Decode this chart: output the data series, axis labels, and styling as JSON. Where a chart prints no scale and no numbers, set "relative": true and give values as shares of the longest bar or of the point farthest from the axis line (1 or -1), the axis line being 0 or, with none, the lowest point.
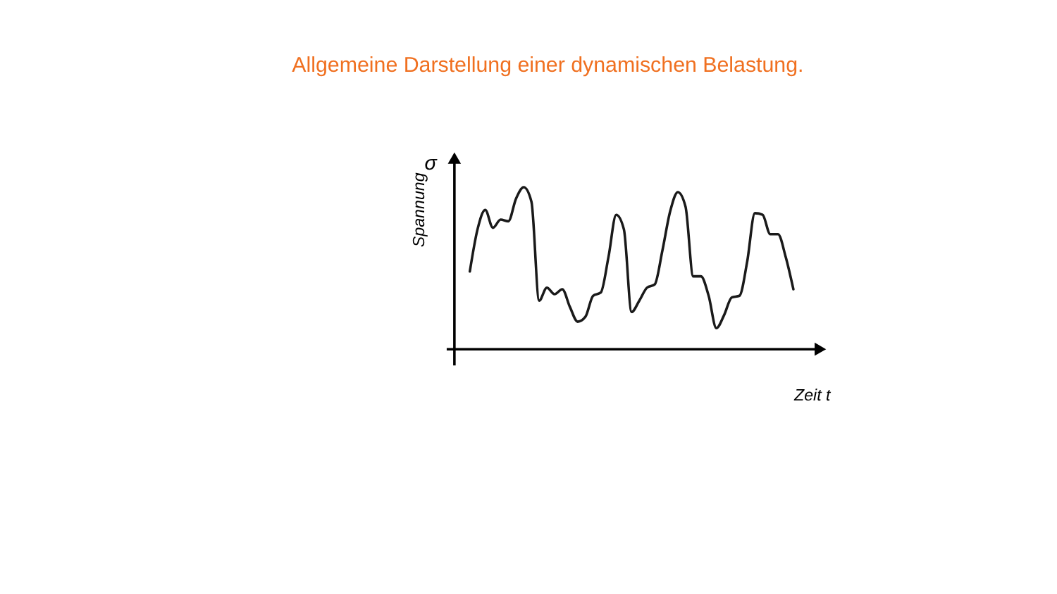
{
  "chart_data": {
    "type": "line",
    "title": "Allgemeine Darstellung einer dynamischen Belastung.",
    "xlabel": "Zeit t",
    "ylabel": "Spannung",
    "annotations": [
      "σ"
    ],
    "relative": true,
    "line_style": "solid",
    "marker": "none",
    "categories": [
      null,
      null,
      null,
      null,
      null,
      null,
      null,
      null,
      null,
      null,
      null,
      null,
      null,
      null,
      null,
      null,
      null,
      null,
      null,
      null,
      null,
      null,
      null,
      null,
      null,
      null,
      null,
      null,
      null,
      null,
      null,
      null,
      null,
      null,
      null,
      null,
      null,
      null,
      null,
      null,
      null,
      null,
      null
    ],
    "series": [
      {
        "color": "#1a1a1a",
        "values": [
          0.48,
          0.74,
          0.86,
          0.75,
          0.8,
          0.79,
          0.93,
          1.0,
          0.91,
          0.3,
          0.38,
          0.34,
          0.37,
          0.26,
          0.17,
          0.2,
          0.33,
          0.35,
          0.57,
          0.83,
          0.74,
          0.23,
          0.3,
          0.38,
          0.4,
          0.61,
          0.85,
          0.97,
          0.88,
          0.45,
          0.45,
          0.33,
          0.13,
          0.21,
          0.32,
          0.33,
          0.54,
          0.84,
          0.83,
          0.71,
          0.71,
          0.57,
          0.37
        ]
      }
    ]
  }
}
